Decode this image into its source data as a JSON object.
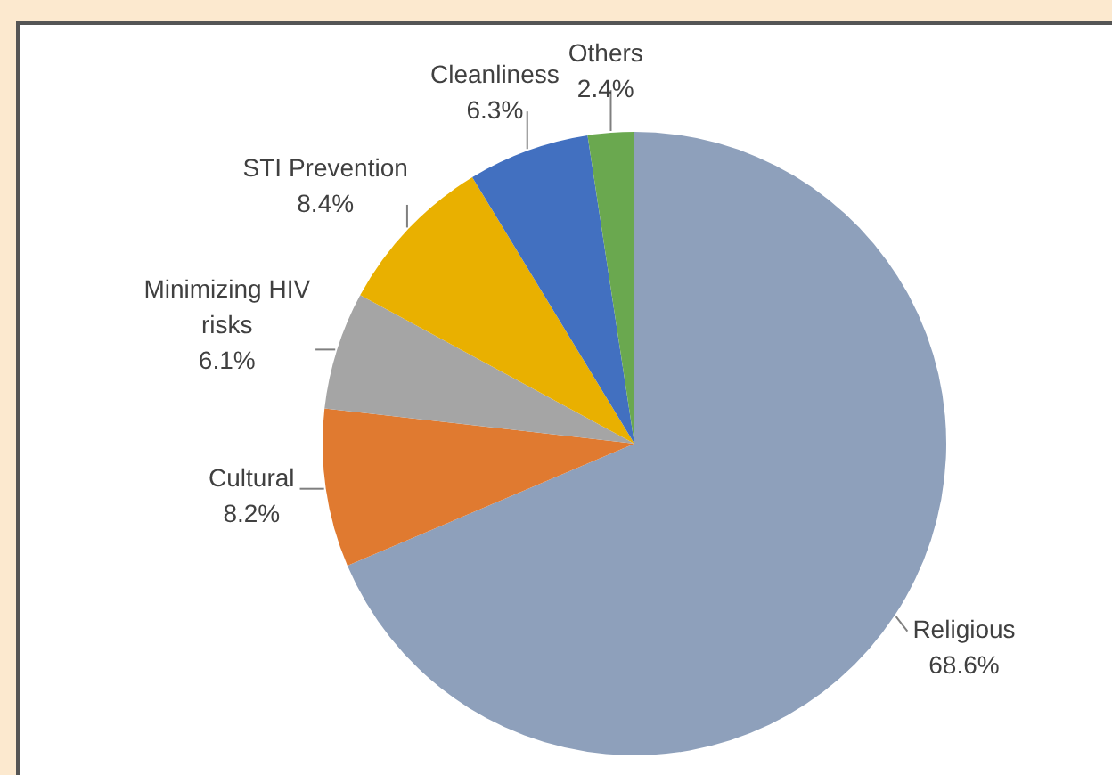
{
  "chart_data": {
    "type": "pie",
    "categories": [
      "Religious",
      "Cultural",
      "Minimizing HIV risks",
      "STI Prevention",
      "Cleanliness",
      "Others"
    ],
    "values": [
      68.6,
      8.2,
      6.1,
      8.4,
      6.3,
      2.4
    ],
    "colors": [
      "#8ea0bb",
      "#e07a30",
      "#a5a5a5",
      "#e9b000",
      "#4270c0",
      "#6aa84f"
    ],
    "value_labels": [
      "68.6%",
      "8.2%",
      "6.1%",
      "8.4%",
      "6.3%",
      "2.4%"
    ]
  }
}
